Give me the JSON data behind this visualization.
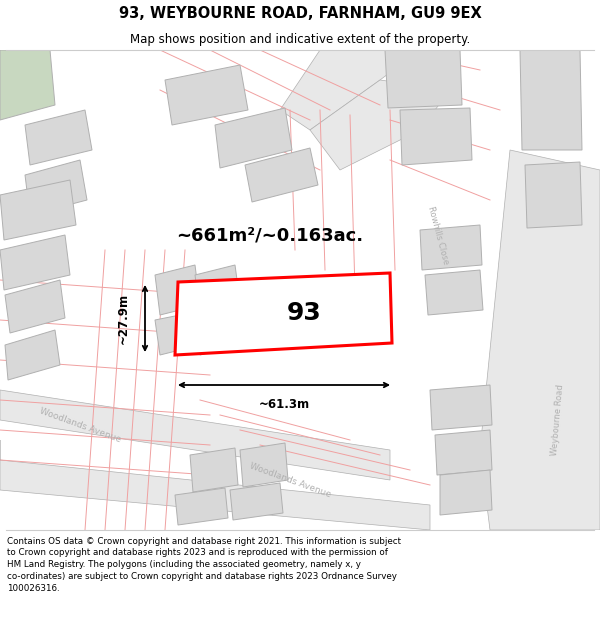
{
  "title_line1": "93, WEYBOURNE ROAD, FARNHAM, GU9 9EX",
  "title_line2": "Map shows position and indicative extent of the property.",
  "footer_text": "Contains OS data © Crown copyright and database right 2021. This information is subject to Crown copyright and database rights 2023 and is reproduced with the permission of HM Land Registry. The polygons (including the associated geometry, namely x, y co-ordinates) are subject to Crown copyright and database rights 2023 Ordnance Survey 100026316.",
  "area_label": "~661m²/~0.163ac.",
  "number_label": "93",
  "width_label": "~61.3m",
  "height_label": "~27.9m",
  "background_color": "#ffffff",
  "cadastral_color": "#f0a0a0",
  "building_fill": "#d8d8d8",
  "building_edge": "#b0b0b0",
  "road_fill": "#e8e8e8",
  "highlight_color": "#ff0000",
  "road_label_color": "#b0b0b0",
  "green_fill": "#c8d8c0"
}
